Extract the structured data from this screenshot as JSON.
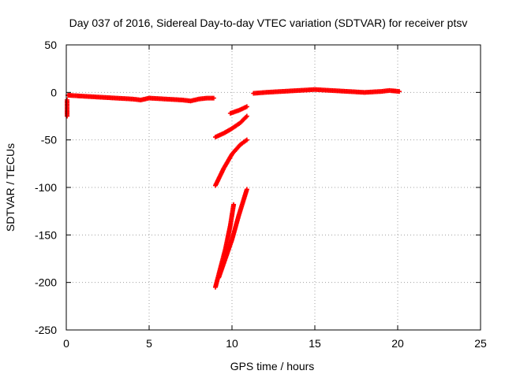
{
  "chart_data": {
    "type": "scatter",
    "title": "Day 037 of 2016, Sidereal Day-to-day VTEC variation (SDTVAR) for receiver ptsv",
    "xlabel": "GPS time / hours",
    "ylabel": "SDTVAR / TECUs",
    "xlim": [
      0,
      25
    ],
    "ylim": [
      -250,
      50
    ],
    "x_ticks": [
      0,
      5,
      10,
      15,
      20,
      25
    ],
    "y_ticks": [
      50,
      0,
      -50,
      -100,
      -150,
      -200,
      -250
    ],
    "x_tick_labels": [
      "0",
      "5",
      "10",
      "15",
      "20",
      "25"
    ],
    "y_tick_labels": [
      "50",
      "0",
      "-50",
      "-100",
      "-150",
      "-200",
      "-250"
    ],
    "grid": true,
    "marker": "+",
    "color": "#ff0000",
    "series": [
      {
        "segments": [
          {
            "x": [
              0.1,
              1.0,
              2.0,
              3.0,
              4.0,
              4.5,
              5.0,
              6.0,
              7.0,
              7.5,
              8.0,
              8.5,
              8.9
            ],
            "y": [
              -3,
              -4,
              -5,
              -6,
              -7,
              -8,
              -6,
              -7,
              -8,
              -9,
              -7,
              -6,
              -6
            ]
          },
          {
            "x": [
              0.05,
              0.05,
              0.05,
              0.05
            ],
            "y": [
              -8,
              -14,
              -20,
              -25
            ]
          },
          {
            "x": [
              9.0,
              9.5,
              10.0,
              10.5,
              10.9
            ],
            "y": [
              -47,
              -43,
              -38,
              -32,
              -25
            ]
          },
          {
            "x": [
              9.9,
              10.4,
              10.9
            ],
            "y": [
              -22,
              -19,
              -15
            ]
          },
          {
            "x": [
              9.0,
              9.5,
              10.0,
              10.5,
              10.9
            ],
            "y": [
              -98,
              -80,
              -65,
              -55,
              -50
            ]
          },
          {
            "x": [
              9.0,
              9.3,
              9.6,
              9.9,
              10.1
            ],
            "y": [
              -205,
              -185,
              -165,
              -140,
              -118
            ]
          },
          {
            "x": [
              9.2,
              9.6,
              10.0,
              10.4,
              10.9
            ],
            "y": [
              -195,
              -175,
              -155,
              -130,
              -102
            ]
          },
          {
            "x": [
              11.3,
              12.0,
              13.0,
              14.0,
              15.0,
              16.0,
              17.0,
              18.0,
              19.0,
              19.5,
              20.1
            ],
            "y": [
              -1,
              0,
              1,
              2,
              3,
              2,
              1,
              0,
              1,
              2,
              1
            ]
          }
        ]
      }
    ]
  }
}
